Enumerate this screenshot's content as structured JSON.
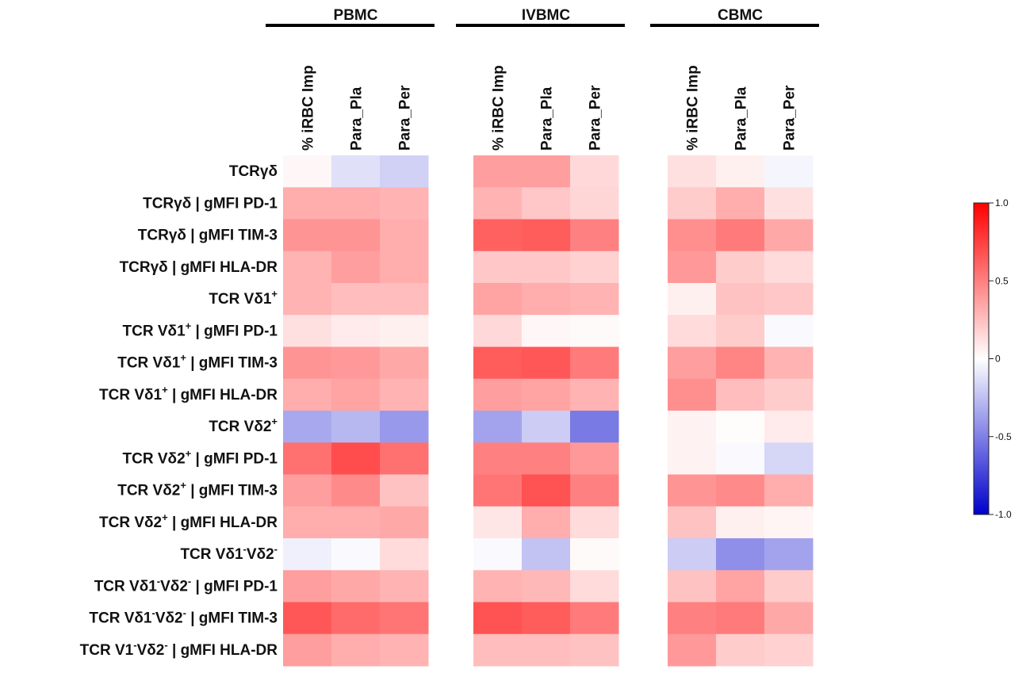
{
  "chart_data": {
    "type": "heatmap",
    "groups": [
      {
        "name": "PBMC",
        "columns": [
          "% iRBC Imp",
          "Para_Pla",
          "Para_Per"
        ]
      },
      {
        "name": "IVBMC",
        "columns": [
          "% iRBC Imp",
          "Para_Pla",
          "Para_Per"
        ]
      },
      {
        "name": "CBMC",
        "columns": [
          "% iRBC Imp",
          "Para_Pla",
          "Para_Per"
        ]
      }
    ],
    "rows": [
      {
        "pre": "TCRγδ",
        "parts": []
      },
      {
        "pre": "TCRγδ | gMFI PD-1",
        "parts": []
      },
      {
        "pre": "TCRγδ | gMFI TIM-3",
        "parts": []
      },
      {
        "pre": "TCRγδ | gMFI HLA-DR",
        "parts": []
      },
      {
        "pre": "TCR Vδ1",
        "parts": [
          {
            "t": "+",
            "sup": true
          }
        ]
      },
      {
        "pre": "TCR Vδ1",
        "parts": [
          {
            "t": "+",
            "sup": true
          },
          {
            "t": " | gMFI PD-1",
            "sup": false
          }
        ]
      },
      {
        "pre": "TCR Vδ1",
        "parts": [
          {
            "t": "+",
            "sup": true
          },
          {
            "t": " | gMFI TIM-3",
            "sup": false
          }
        ]
      },
      {
        "pre": "TCR Vδ1",
        "parts": [
          {
            "t": "+",
            "sup": true
          },
          {
            "t": " | gMFI HLA-DR",
            "sup": false
          }
        ]
      },
      {
        "pre": "TCR Vδ2",
        "parts": [
          {
            "t": "+",
            "sup": true
          }
        ]
      },
      {
        "pre": "TCR Vδ2",
        "parts": [
          {
            "t": "+",
            "sup": true
          },
          {
            "t": " | gMFI PD-1",
            "sup": false
          }
        ]
      },
      {
        "pre": "TCR Vδ2",
        "parts": [
          {
            "t": "+",
            "sup": true
          },
          {
            "t": " | gMFI TIM-3",
            "sup": false
          }
        ]
      },
      {
        "pre": "TCR Vδ2",
        "parts": [
          {
            "t": "+",
            "sup": true
          },
          {
            "t": " | gMFI HLA-DR",
            "sup": false
          }
        ]
      },
      {
        "pre": "TCR Vδ1",
        "parts": [
          {
            "t": "-",
            "sup": true
          },
          {
            "t": "Vδ2",
            "sup": false
          },
          {
            "t": "-",
            "sup": true
          }
        ]
      },
      {
        "pre": "TCR Vδ1",
        "parts": [
          {
            "t": "-",
            "sup": true
          },
          {
            "t": "Vδ2",
            "sup": false
          },
          {
            "t": "-",
            "sup": true
          },
          {
            "t": " | gMFI PD-1",
            "sup": false
          }
        ]
      },
      {
        "pre": "TCR Vδ1",
        "parts": [
          {
            "t": "-",
            "sup": true
          },
          {
            "t": "Vδ2",
            "sup": false
          },
          {
            "t": "-",
            "sup": true
          },
          {
            "t": " | gMFI TIM-3",
            "sup": false
          }
        ]
      },
      {
        "pre": "TCR V1",
        "parts": [
          {
            "t": "-",
            "sup": true
          },
          {
            "t": "Vδ2",
            "sup": false
          },
          {
            "t": "-",
            "sup": true
          },
          {
            "t": " | gMFI HLA-DR",
            "sup": false
          }
        ]
      }
    ],
    "values": [
      [
        0.03,
        -0.12,
        -0.18,
        0.38,
        0.38,
        0.15,
        0.12,
        0.06,
        -0.04
      ],
      [
        0.32,
        0.32,
        0.3,
        0.3,
        0.22,
        0.16,
        0.2,
        0.32,
        0.12
      ],
      [
        0.42,
        0.42,
        0.32,
        0.62,
        0.64,
        0.5,
        0.44,
        0.52,
        0.34
      ],
      [
        0.3,
        0.38,
        0.32,
        0.22,
        0.22,
        0.18,
        0.4,
        0.2,
        0.14
      ],
      [
        0.3,
        0.26,
        0.26,
        0.36,
        0.32,
        0.3,
        0.06,
        0.24,
        0.22
      ],
      [
        0.12,
        0.08,
        0.06,
        0.15,
        0.03,
        0.02,
        0.14,
        0.2,
        -0.02
      ],
      [
        0.42,
        0.4,
        0.34,
        0.64,
        0.66,
        0.52,
        0.38,
        0.48,
        0.3
      ],
      [
        0.32,
        0.36,
        0.3,
        0.38,
        0.36,
        0.3,
        0.44,
        0.26,
        0.2
      ],
      [
        -0.34,
        -0.28,
        -0.4,
        -0.36,
        -0.2,
        -0.52,
        0.05,
        0.01,
        0.08
      ],
      [
        0.56,
        0.7,
        0.56,
        0.5,
        0.5,
        0.4,
        0.05,
        -0.02,
        -0.16
      ],
      [
        0.38,
        0.46,
        0.24,
        0.54,
        0.68,
        0.5,
        0.42,
        0.46,
        0.32
      ],
      [
        0.32,
        0.32,
        0.34,
        0.1,
        0.32,
        0.14,
        0.24,
        0.06,
        0.04
      ],
      [
        -0.06,
        -0.02,
        0.14,
        -0.02,
        -0.24,
        0.02,
        -0.2,
        -0.44,
        -0.36
      ],
      [
        0.38,
        0.34,
        0.3,
        0.3,
        0.28,
        0.14,
        0.24,
        0.36,
        0.2
      ],
      [
        0.66,
        0.58,
        0.54,
        0.68,
        0.64,
        0.52,
        0.5,
        0.52,
        0.34
      ],
      [
        0.38,
        0.32,
        0.3,
        0.26,
        0.26,
        0.24,
        0.4,
        0.2,
        0.18
      ]
    ],
    "colorbar": {
      "min": -1.0,
      "max": 1.0,
      "ticks": [
        "1.0",
        "0.5",
        "0",
        "-0.5",
        "-1.0"
      ],
      "tick_values": [
        1.0,
        0.5,
        0.0,
        -0.5,
        -1.0
      ]
    },
    "colors": {
      "positive": "#ff0000",
      "negative": "#0000cc",
      "zero": "#ffffff"
    }
  }
}
